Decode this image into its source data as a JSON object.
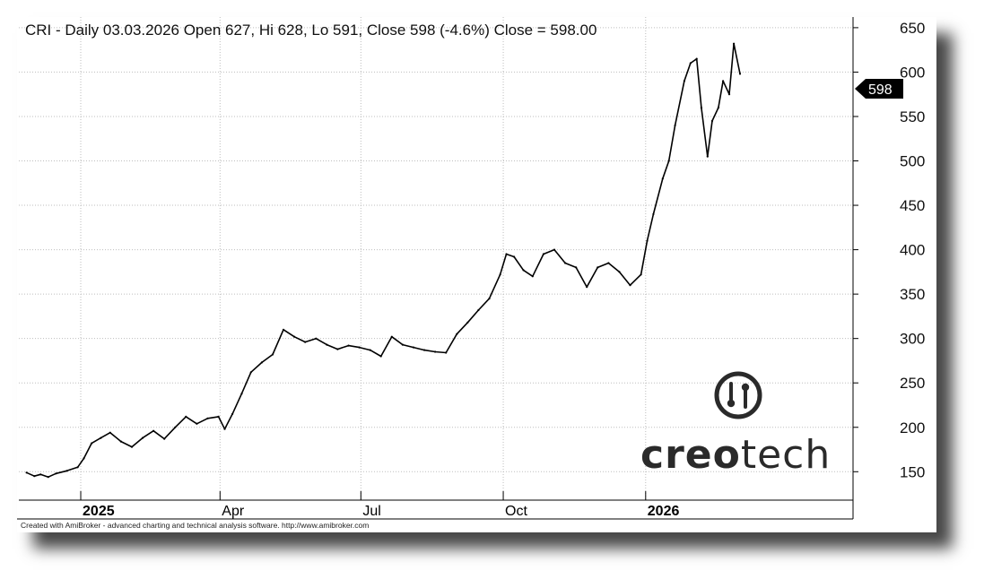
{
  "chart_data": {
    "type": "line",
    "title": "CRI - Daily 03.03.2026 Open 627, Hi 628, Lo 591, Close 598 (-4.6%) Close = 598.00",
    "ylim": [
      118,
      662
    ],
    "y_ticks": [
      150,
      200,
      250,
      300,
      350,
      400,
      450,
      500,
      550,
      600,
      650
    ],
    "x_labels": [
      {
        "label": "2025",
        "date": "2025-01-01",
        "bold": true
      },
      {
        "label": "Apr",
        "date": "2025-04-01",
        "bold": false
      },
      {
        "label": "Jul",
        "date": "2025-07-01",
        "bold": false
      },
      {
        "label": "Oct",
        "date": "2025-10-01",
        "bold": false
      },
      {
        "label": "2026",
        "date": "2026-01-01",
        "bold": true
      }
    ],
    "grid": true,
    "last_close": 598,
    "series": [
      {
        "values": [
          {
            "date": "2024-11-27",
            "close": 149
          },
          {
            "date": "2024-12-02",
            "close": 145
          },
          {
            "date": "2024-12-06",
            "close": 147
          },
          {
            "date": "2024-12-11",
            "close": 144
          },
          {
            "date": "2024-12-16",
            "close": 148
          },
          {
            "date": "2024-12-23",
            "close": 151
          },
          {
            "date": "2024-12-30",
            "close": 155
          },
          {
            "date": "2025-01-03",
            "close": 165
          },
          {
            "date": "2025-01-08",
            "close": 182
          },
          {
            "date": "2025-01-14",
            "close": 188
          },
          {
            "date": "2025-01-20",
            "close": 194
          },
          {
            "date": "2025-01-27",
            "close": 184
          },
          {
            "date": "2025-02-03",
            "close": 178
          },
          {
            "date": "2025-02-10",
            "close": 188
          },
          {
            "date": "2025-02-17",
            "close": 196
          },
          {
            "date": "2025-02-24",
            "close": 187
          },
          {
            "date": "2025-03-03",
            "close": 200
          },
          {
            "date": "2025-03-10",
            "close": 212
          },
          {
            "date": "2025-03-17",
            "close": 204
          },
          {
            "date": "2025-03-24",
            "close": 210
          },
          {
            "date": "2025-03-31",
            "close": 212
          },
          {
            "date": "2025-04-04",
            "close": 198
          },
          {
            "date": "2025-04-09",
            "close": 215
          },
          {
            "date": "2025-04-15",
            "close": 238
          },
          {
            "date": "2025-04-21",
            "close": 262
          },
          {
            "date": "2025-04-28",
            "close": 273
          },
          {
            "date": "2025-05-05",
            "close": 282
          },
          {
            "date": "2025-05-12",
            "close": 310
          },
          {
            "date": "2025-05-19",
            "close": 302
          },
          {
            "date": "2025-05-26",
            "close": 296
          },
          {
            "date": "2025-06-02",
            "close": 300
          },
          {
            "date": "2025-06-09",
            "close": 293
          },
          {
            "date": "2025-06-16",
            "close": 288
          },
          {
            "date": "2025-06-23",
            "close": 292
          },
          {
            "date": "2025-06-30",
            "close": 290
          },
          {
            "date": "2025-07-07",
            "close": 287
          },
          {
            "date": "2025-07-14",
            "close": 280
          },
          {
            "date": "2025-07-21",
            "close": 302
          },
          {
            "date": "2025-07-28",
            "close": 293
          },
          {
            "date": "2025-08-04",
            "close": 290
          },
          {
            "date": "2025-08-11",
            "close": 287
          },
          {
            "date": "2025-08-18",
            "close": 285
          },
          {
            "date": "2025-08-25",
            "close": 284
          },
          {
            "date": "2025-09-01",
            "close": 305
          },
          {
            "date": "2025-09-08",
            "close": 318
          },
          {
            "date": "2025-09-15",
            "close": 332
          },
          {
            "date": "2025-09-22",
            "close": 345
          },
          {
            "date": "2025-09-29",
            "close": 372
          },
          {
            "date": "2025-10-03",
            "close": 395
          },
          {
            "date": "2025-10-08",
            "close": 392
          },
          {
            "date": "2025-10-14",
            "close": 377
          },
          {
            "date": "2025-10-20",
            "close": 370
          },
          {
            "date": "2025-10-27",
            "close": 395
          },
          {
            "date": "2025-11-03",
            "close": 400
          },
          {
            "date": "2025-11-10",
            "close": 385
          },
          {
            "date": "2025-11-17",
            "close": 380
          },
          {
            "date": "2025-11-24",
            "close": 358
          },
          {
            "date": "2025-12-01",
            "close": 380
          },
          {
            "date": "2025-12-08",
            "close": 385
          },
          {
            "date": "2025-12-15",
            "close": 375
          },
          {
            "date": "2025-12-22",
            "close": 360
          },
          {
            "date": "2025-12-29",
            "close": 372
          },
          {
            "date": "2026-01-02",
            "close": 410
          },
          {
            "date": "2026-01-06",
            "close": 440
          },
          {
            "date": "2026-01-12",
            "close": 480
          },
          {
            "date": "2026-01-16",
            "close": 500
          },
          {
            "date": "2026-01-20",
            "close": 540
          },
          {
            "date": "2026-01-26",
            "close": 590
          },
          {
            "date": "2026-01-30",
            "close": 610
          },
          {
            "date": "2026-02-03",
            "close": 615
          },
          {
            "date": "2026-02-06",
            "close": 560
          },
          {
            "date": "2026-02-10",
            "close": 505
          },
          {
            "date": "2026-02-13",
            "close": 545
          },
          {
            "date": "2026-02-17",
            "close": 560
          },
          {
            "date": "2026-02-20",
            "close": 590
          },
          {
            "date": "2026-02-24",
            "close": 575
          },
          {
            "date": "2026-02-27",
            "close": 632
          },
          {
            "date": "2026-03-03",
            "close": 598
          }
        ]
      }
    ]
  },
  "footer": {
    "credit": "Created with AmiBroker - advanced charting and technical analysis software. http://www.amibroker.com"
  },
  "watermark": {
    "icon": "circuit-logo-icon",
    "text_strong": "creo",
    "text_light": "tech"
  },
  "colors": {
    "line": "#000000",
    "grid": "#bdbdbd",
    "shadow": "#000000",
    "tag": "#000000"
  }
}
